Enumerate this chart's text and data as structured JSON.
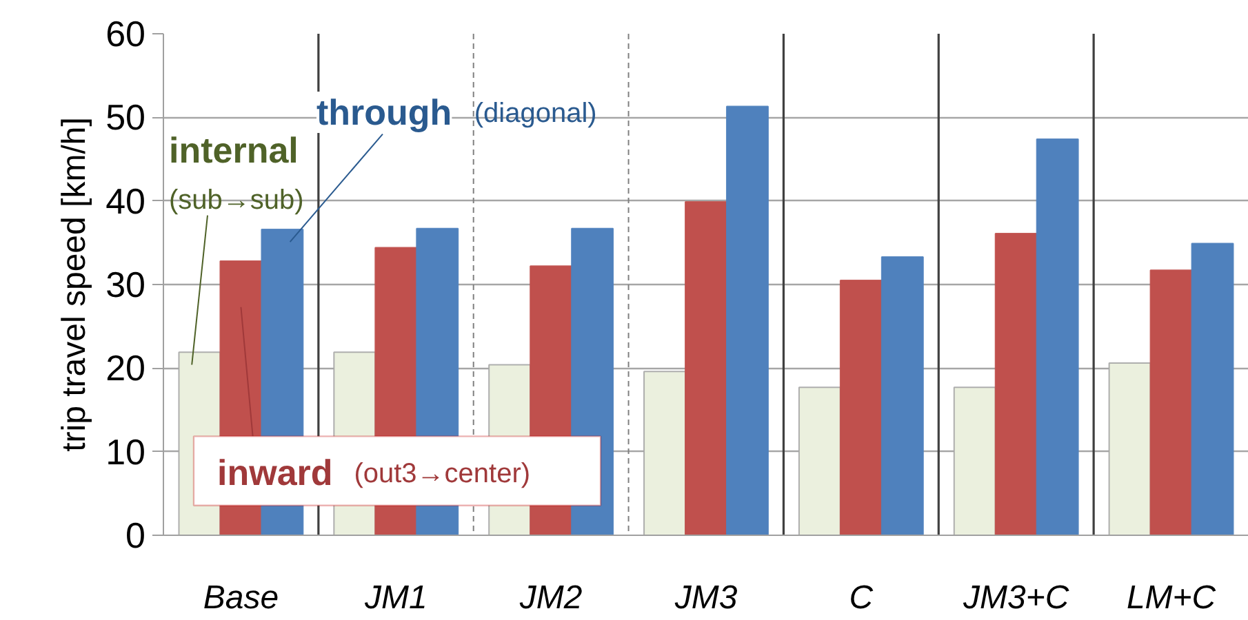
{
  "chart_data": {
    "type": "bar",
    "ylabel": "trip travel speed [km/h]",
    "categories": [
      "Base",
      "JM1",
      "JM2",
      "JM3",
      "C",
      "JM3+C",
      "LM+C"
    ],
    "series": [
      {
        "name": "internal (sub→sub)",
        "color": "#ebf0de",
        "values": [
          21.9,
          21.9,
          20.4,
          19.6,
          17.7,
          17.7,
          20.6
        ]
      },
      {
        "name": "inward (out3→center)",
        "color": "#c0504d",
        "values": [
          32.8,
          34.4,
          32.2,
          39.9,
          30.5,
          36.1,
          31.7
        ]
      },
      {
        "name": "through (diagonal)",
        "color": "#4f81bd",
        "values": [
          36.6,
          36.7,
          36.7,
          51.3,
          33.3,
          47.4,
          34.9
        ]
      }
    ],
    "ylim": [
      0,
      60
    ],
    "yticks": [
      0,
      10,
      20,
      30,
      40,
      50,
      60
    ],
    "grid": "y"
  }
}
